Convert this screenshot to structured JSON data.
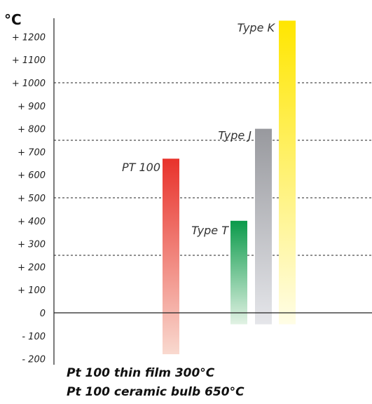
{
  "chart_data": {
    "type": "bar",
    "unit_label": "°C",
    "y_ticks": [
      {
        "value": 1200,
        "label": "+ 1200"
      },
      {
        "value": 1100,
        "label": "+ 1100"
      },
      {
        "value": 1000,
        "label": "+ 1000"
      },
      {
        "value": 900,
        "label": "+ 900"
      },
      {
        "value": 800,
        "label": "+ 800"
      },
      {
        "value": 700,
        "label": "+ 700"
      },
      {
        "value": 600,
        "label": "+ 600"
      },
      {
        "value": 500,
        "label": "+ 500"
      },
      {
        "value": 400,
        "label": "+ 400"
      },
      {
        "value": 300,
        "label": "+ 300"
      },
      {
        "value": 200,
        "label": "+ 200"
      },
      {
        "value": 100,
        "label": "+ 100"
      },
      {
        "value": 0,
        "label": "0"
      },
      {
        "value": -100,
        "label": "- 100"
      },
      {
        "value": -200,
        "label": "- 200"
      }
    ],
    "reference_lines": [
      1000,
      750,
      500,
      250
    ],
    "ylim": [
      -200,
      1260
    ],
    "series": [
      {
        "name": "PT 100",
        "min": -180,
        "max": 670,
        "color_top": "#e8322b",
        "color_bottom": "#f9d9cf"
      },
      {
        "name": "Type T",
        "min": -50,
        "max": 400,
        "color_top": "#0a9a4a",
        "color_bottom": "#e2f2e4"
      },
      {
        "name": "Type J",
        "min": -50,
        "max": 800,
        "color_top": "#98999e",
        "color_bottom": "#e5e6ea"
      },
      {
        "name": "Type K",
        "min": -50,
        "max": 1270,
        "color_top": "#ffe600",
        "color_bottom": "#fffde6"
      }
    ]
  },
  "captions": {
    "line1": "Pt 100 thin film 300°C",
    "line2": "Pt 100 ceramic bulb 650°C"
  }
}
